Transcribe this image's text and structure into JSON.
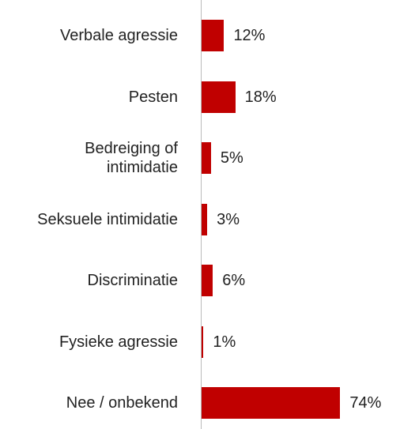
{
  "chart_data": {
    "type": "barh",
    "categories": [
      "Verbale agressie",
      "Pesten",
      "Bedreiging of intimidatie",
      "Seksuele intimidatie",
      "Discriminatie",
      "Fysieke agressie",
      "Nee / onbekend"
    ],
    "values": [
      12,
      18,
      5,
      3,
      6,
      1,
      74
    ],
    "value_labels": [
      "12%",
      "18%",
      "5%",
      "3%",
      "6%",
      "1%",
      "74%"
    ],
    "color": "#c00000"
  }
}
